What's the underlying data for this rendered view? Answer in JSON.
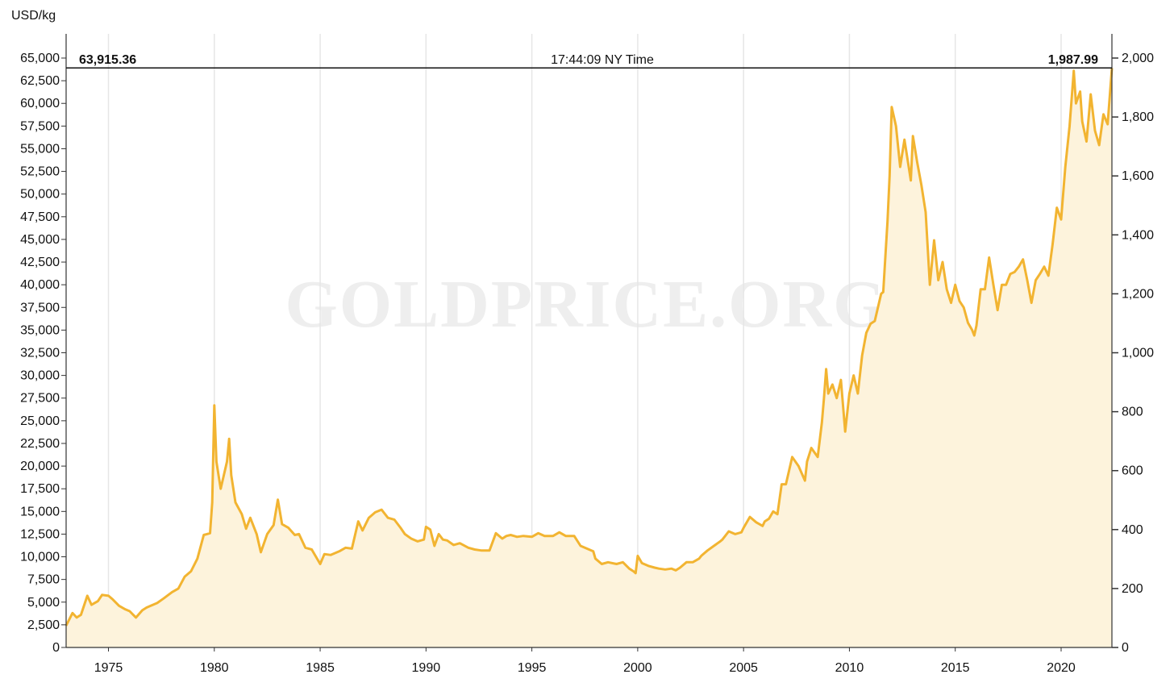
{
  "chart_data": {
    "type": "area",
    "ylabel": "USD/kg",
    "watermark": "GOLDPRICE.ORG",
    "readout": {
      "left_value": "63,915.36",
      "time": "17:44:09 NY Time",
      "right_value": "1,987.99"
    },
    "x_ticks": [
      "1975",
      "1980",
      "1985",
      "1990",
      "1995",
      "2000",
      "2005",
      "2010",
      "2015",
      "2020"
    ],
    "xlim": [
      1973.0,
      2022.4
    ],
    "y_left": {
      "ylim": [
        0,
        65000
      ],
      "ticks": [
        "0",
        "2,500",
        "5,000",
        "7,500",
        "10,000",
        "12,500",
        "15,000",
        "17,500",
        "20,000",
        "22,500",
        "25,000",
        "27,500",
        "30,000",
        "32,500",
        "35,000",
        "37,500",
        "40,000",
        "42,500",
        "45,000",
        "47,500",
        "50,000",
        "52,500",
        "55,000",
        "57,500",
        "60,000",
        "62,500",
        "65,000"
      ]
    },
    "y_right": {
      "ylim": [
        0,
        2000
      ],
      "ticks": [
        "0",
        "200",
        "400",
        "600",
        "800",
        "1,000",
        "1,200",
        "1,400",
        "1,600",
        "1,800",
        "2,000"
      ]
    },
    "grid": true,
    "colors": {
      "line": "#f2b431",
      "fill": "#fdf3dc",
      "grid": "#e6e6e6",
      "readout_line": "#111111"
    },
    "series": [
      {
        "x": [
          1973.0,
          1973.3,
          1973.5,
          1973.7,
          1974.0,
          1974.2,
          1974.5,
          1974.7,
          1975.0,
          1975.2,
          1975.5,
          1975.8,
          1976.0,
          1976.3,
          1976.6,
          1976.8,
          1977.0,
          1977.3,
          1977.6,
          1978.0,
          1978.3,
          1978.6,
          1978.9,
          1979.2,
          1979.5,
          1979.8,
          1979.9,
          1980.0,
          1980.1,
          1980.3,
          1980.6,
          1980.7,
          1980.8,
          1981.0,
          1981.3,
          1981.5,
          1981.7,
          1982.0,
          1982.2,
          1982.5,
          1982.8,
          1983.0,
          1983.2,
          1983.5,
          1983.8,
          1984.0,
          1984.3,
          1984.6,
          1985.0,
          1985.2,
          1985.5,
          1985.9,
          1986.2,
          1986.5,
          1986.8,
          1987.0,
          1987.3,
          1987.6,
          1987.9,
          1988.2,
          1988.5,
          1988.8,
          1989.0,
          1989.3,
          1989.6,
          1989.9,
          1990.0,
          1990.2,
          1990.4,
          1990.6,
          1990.8,
          1991.0,
          1991.3,
          1991.6,
          1992.0,
          1992.3,
          1992.6,
          1993.0,
          1993.3,
          1993.6,
          1993.8,
          1994.0,
          1994.3,
          1994.6,
          1995.0,
          1995.3,
          1995.6,
          1996.0,
          1996.3,
          1996.6,
          1996.9,
          1997.0,
          1997.3,
          1997.6,
          1997.9,
          1998.0,
          1998.3,
          1998.6,
          1999.0,
          1999.3,
          1999.6,
          1999.8,
          1999.9,
          2000.0,
          2000.2,
          2000.5,
          2000.8,
          2001.0,
          2001.3,
          2001.6,
          2001.8,
          2002.0,
          2002.3,
          2002.6,
          2002.9,
          2003.0,
          2003.3,
          2003.6,
          2003.9,
          2004.0,
          2004.3,
          2004.6,
          2004.9,
          2005.0,
          2005.3,
          2005.6,
          2005.9,
          2006.0,
          2006.2,
          2006.4,
          2006.6,
          2006.8,
          2007.0,
          2007.3,
          2007.6,
          2007.9,
          2008.0,
          2008.2,
          2008.5,
          2008.7,
          2008.8,
          2008.9,
          2009.0,
          2009.2,
          2009.4,
          2009.6,
          2009.8,
          2010.0,
          2010.2,
          2010.4,
          2010.6,
          2010.8,
          2011.0,
          2011.2,
          2011.5,
          2011.6,
          2011.7,
          2011.8,
          2011.9,
          2012.0,
          2012.2,
          2012.4,
          2012.6,
          2012.8,
          2012.9,
          2013.0,
          2013.2,
          2013.4,
          2013.6,
          2013.8,
          2014.0,
          2014.2,
          2014.4,
          2014.6,
          2014.8,
          2015.0,
          2015.2,
          2015.4,
          2015.6,
          2015.8,
          2015.9,
          2016.0,
          2016.2,
          2016.4,
          2016.6,
          2016.8,
          2017.0,
          2017.2,
          2017.4,
          2017.6,
          2017.8,
          2018.0,
          2018.2,
          2018.4,
          2018.6,
          2018.8,
          2019.0,
          2019.2,
          2019.4,
          2019.6,
          2019.8,
          2020.0,
          2020.2,
          2020.4,
          2020.6,
          2020.7,
          2020.9,
          2021.0,
          2021.2,
          2021.4,
          2021.6,
          2021.8,
          2022.0,
          2022.2,
          2022.4
        ],
        "values": [
          2400,
          3800,
          3300,
          3600,
          5700,
          4700,
          5100,
          5800,
          5700,
          5300,
          4600,
          4200,
          4000,
          3300,
          4100,
          4400,
          4600,
          4900,
          5400,
          6100,
          6500,
          7800,
          8400,
          9800,
          12400,
          12600,
          16000,
          26700,
          20500,
          17500,
          20500,
          23000,
          19000,
          16000,
          14700,
          13100,
          14300,
          12500,
          10500,
          12500,
          13500,
          16300,
          13600,
          13200,
          12400,
          12500,
          11000,
          10800,
          9200,
          10300,
          10200,
          10600,
          11000,
          10900,
          13900,
          12900,
          14300,
          14900,
          15200,
          14300,
          14100,
          13200,
          12500,
          12000,
          11700,
          11900,
          13300,
          13000,
          11200,
          12500,
          11900,
          11800,
          11300,
          11500,
          11000,
          10800,
          10700,
          10700,
          12600,
          12000,
          12300,
          12400,
          12200,
          12300,
          12200,
          12600,
          12300,
          12300,
          12700,
          12300,
          12300,
          12300,
          11200,
          10900,
          10600,
          9800,
          9200,
          9400,
          9200,
          9400,
          8700,
          8400,
          8200,
          10100,
          9300,
          9000,
          8800,
          8700,
          8600,
          8700,
          8500,
          8800,
          9400,
          9400,
          9800,
          10100,
          10700,
          11200,
          11700,
          11900,
          12800,
          12500,
          12700,
          13200,
          14400,
          13800,
          13400,
          13900,
          14200,
          15000,
          14700,
          18000,
          18000,
          21000,
          20000,
          18400,
          20500,
          22000,
          21000,
          24800,
          27500,
          30700,
          28000,
          29000,
          27500,
          29500,
          23800,
          28000,
          30000,
          28000,
          32200,
          34700,
          35700,
          36000,
          39000,
          39200,
          43200,
          47000,
          52000,
          59600,
          57500,
          53000,
          56000,
          53000,
          51500,
          56400,
          53500,
          51000,
          48000,
          40000,
          44900,
          40500,
          42500,
          39500,
          38000,
          40000,
          38200,
          37500,
          35800,
          35000,
          34400,
          35500,
          39500,
          39500,
          43000,
          40000,
          37200,
          40000,
          40000,
          41200,
          41400,
          42000,
          42800,
          40500,
          38000,
          40500,
          41200,
          42000,
          41000,
          44500,
          48500,
          47200,
          53000,
          57500,
          63600,
          60000,
          61300,
          58000,
          55800,
          61000,
          57000,
          55400,
          58800,
          57700,
          63900
        ]
      }
    ]
  }
}
